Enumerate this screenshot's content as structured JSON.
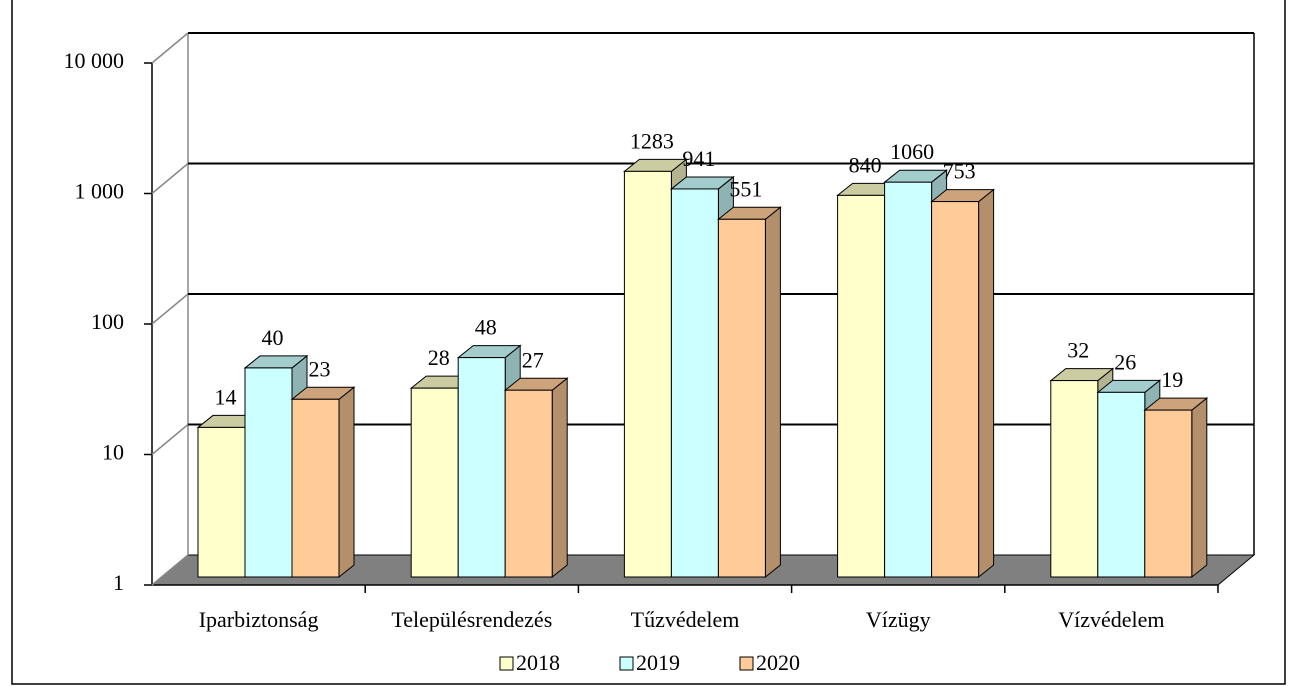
{
  "chart_data": {
    "type": "bar3d",
    "categories": [
      "Iparbiztonság",
      "Településrendezés",
      "Tűzvédelem",
      "Vízügy",
      "Vízvédelem"
    ],
    "series": [
      {
        "name": "2018",
        "color": "#ffffcc",
        "values": [
          14,
          28,
          1283,
          840,
          32
        ]
      },
      {
        "name": "2019",
        "color": "#ccffff",
        "values": [
          40,
          48,
          941,
          1060,
          26
        ]
      },
      {
        "name": "2020",
        "color": "#ffcc99",
        "values": [
          23,
          27,
          551,
          753,
          19
        ]
      }
    ],
    "ylim": [
      1,
      10000
    ],
    "yticks": [
      1,
      10,
      100,
      {
        "value": 1000,
        "label": "1 000"
      },
      {
        "value": 10000,
        "label": "10 000"
      }
    ],
    "log_scale": true,
    "grid": true,
    "legend": "bottom"
  }
}
